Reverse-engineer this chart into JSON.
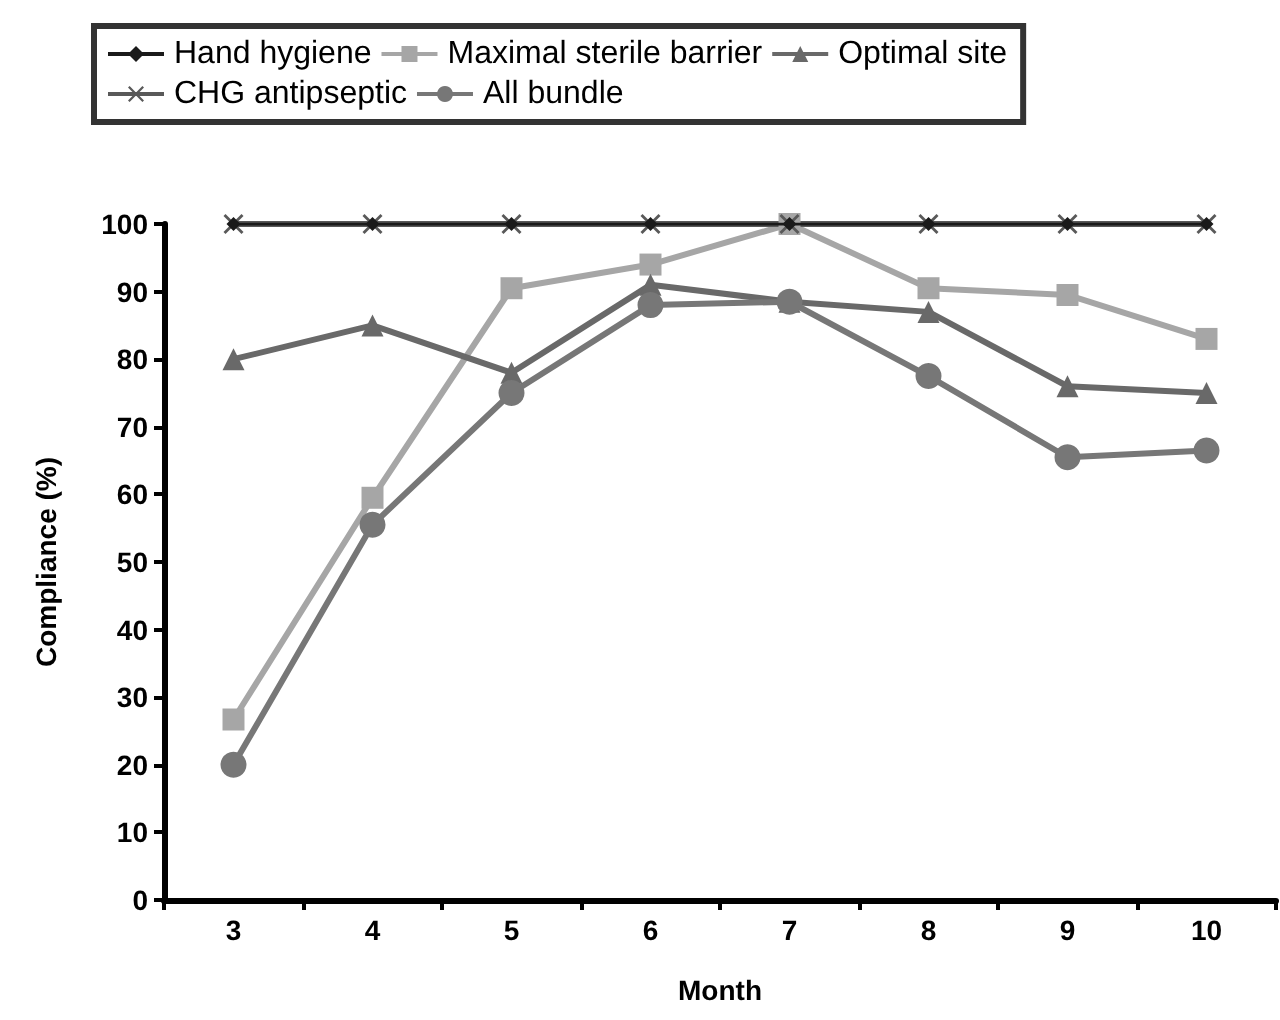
{
  "chart_data": {
    "type": "line",
    "xlabel": "Month",
    "ylabel": "Compliance (%)",
    "categories": [
      "3",
      "4",
      "5",
      "6",
      "7",
      "8",
      "9",
      "10"
    ],
    "ylim": [
      0,
      100
    ],
    "yticks": [
      0,
      10,
      20,
      30,
      40,
      50,
      60,
      70,
      80,
      90,
      100
    ],
    "legend": "top",
    "series": [
      {
        "name": "Hand hygiene",
        "color": "#1a1a1a",
        "marker": "diamond",
        "values": [
          100,
          100,
          100,
          100,
          100,
          100,
          100,
          100
        ]
      },
      {
        "name": "Maximal sterile barrier",
        "color": "#a6a6a6",
        "marker": "square",
        "values": [
          26.7,
          59.5,
          90.5,
          94,
          100,
          90.5,
          89.5,
          83
        ]
      },
      {
        "name": "Optimal site",
        "color": "#696969",
        "marker": "triangle",
        "values": [
          80,
          85,
          78,
          91,
          88.5,
          87,
          76,
          75
        ]
      },
      {
        "name": "CHG antipseptic",
        "color": "#595959",
        "marker": "cross",
        "values": [
          100,
          100,
          100,
          100,
          100,
          100,
          100,
          100
        ]
      },
      {
        "name": "All bundle",
        "color": "#777777",
        "marker": "circle",
        "values": [
          20,
          55.5,
          75,
          88,
          88.5,
          77.5,
          65.5,
          66.5
        ]
      }
    ]
  }
}
